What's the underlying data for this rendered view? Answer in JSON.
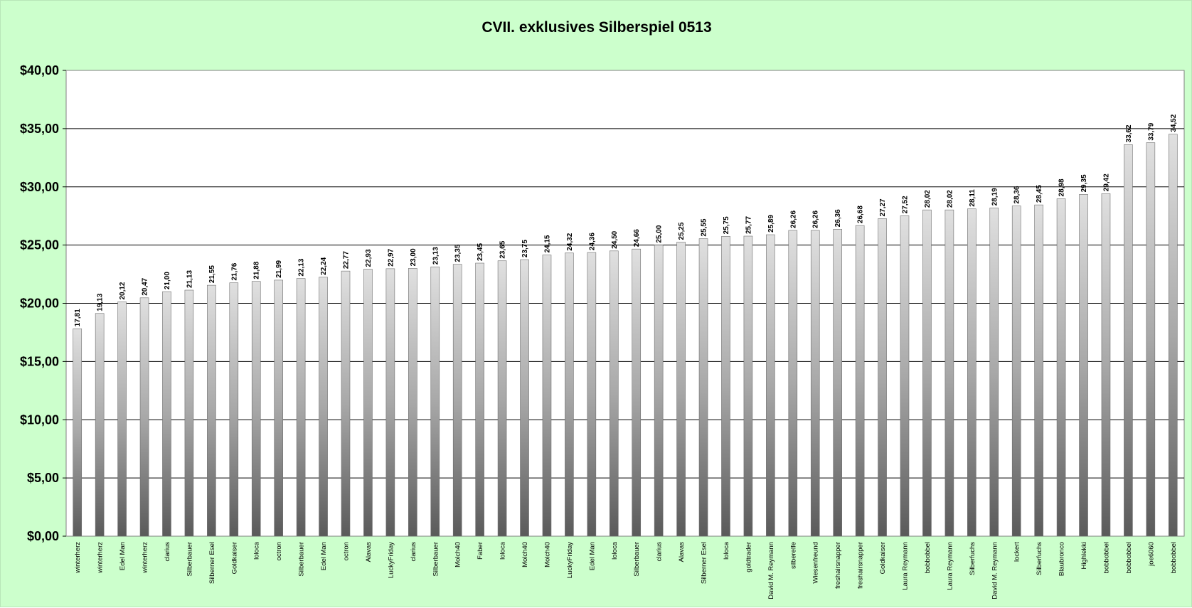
{
  "chart_data": {
    "type": "bar",
    "title": "CVII. exklusives Silberspiel 0513",
    "xlabel": "",
    "ylabel": "",
    "ylim": [
      0,
      40
    ],
    "yticks": [
      "$0,00",
      "$5,00",
      "$10,00",
      "$15,00",
      "$20,00",
      "$25,00",
      "$30,00",
      "$35,00",
      "$40,00"
    ],
    "grid": true,
    "legend": "none",
    "colors": {
      "background": "#ccffcc",
      "plot": "#ffffff",
      "bar_light": "#e0e0e0",
      "bar_dark": "#5a5a5a"
    },
    "categories": [
      "winterherz",
      "winterherz",
      "Edel Man",
      "winterherz",
      "clarius",
      "Silberbauer",
      "Silberner Esel",
      "Goldkaiser",
      "loloca",
      "octron",
      "Silberbauer",
      "Edel Man",
      "octron",
      "Alavas",
      "LuckyFriday",
      "clarius",
      "Silberbauer",
      "Molch40",
      "Faber",
      "loloca",
      "Molch40",
      "Molch40",
      "LuckyFriday",
      "Edel Man",
      "loloca",
      "Silberbauer",
      "clarius",
      "Alavas",
      "Silberner Esel",
      "loloca",
      "goldtrader",
      "David M. Reymann",
      "silberelfe",
      "Wiesenfreund",
      "freshairsnapper",
      "freshairsnapper",
      "Goldkaiser",
      "Laura Reymann",
      "bobbobbel",
      "Laura Reymann",
      "Silberfuchs",
      "David M. Reymann",
      "lockert",
      "Silberfuchs",
      "Blaubronco",
      "Highlekki",
      "bobbobbel",
      "bobbobbel",
      "joe6060",
      "bobbobbel"
    ],
    "values": [
      17.81,
      19.13,
      20.12,
      20.47,
      21.0,
      21.13,
      21.55,
      21.76,
      21.88,
      21.99,
      22.13,
      22.24,
      22.77,
      22.93,
      22.97,
      23.0,
      23.13,
      23.35,
      23.45,
      23.65,
      23.75,
      24.15,
      24.32,
      24.36,
      24.5,
      24.66,
      25.0,
      25.25,
      25.55,
      25.75,
      25.77,
      25.89,
      26.26,
      26.26,
      26.36,
      26.68,
      27.27,
      27.52,
      28.02,
      28.02,
      28.11,
      28.19,
      28.36,
      28.45,
      28.98,
      29.35,
      29.42,
      33.62,
      33.79,
      34.52
    ],
    "value_labels": [
      "17,81",
      "19,13",
      "20,12",
      "20,47",
      "21,00",
      "21,13",
      "21,55",
      "21,76",
      "21,88",
      "21,99",
      "22,13",
      "22,24",
      "22,77",
      "22,93",
      "22,97",
      "23,00",
      "23,13",
      "23,35",
      "23,45",
      "23,65",
      "23,75",
      "24,15",
      "24,32",
      "24,36",
      "24,50",
      "24,66",
      "25,00",
      "25,25",
      "25,55",
      "25,75",
      "25,77",
      "25,89",
      "26,26",
      "26,26",
      "26,36",
      "26,68",
      "27,27",
      "27,52",
      "28,02",
      "28,02",
      "28,11",
      "28,19",
      "28,36",
      "28,45",
      "28,98",
      "29,35",
      "29,42",
      "33,62",
      "33,79",
      "34,52"
    ]
  }
}
